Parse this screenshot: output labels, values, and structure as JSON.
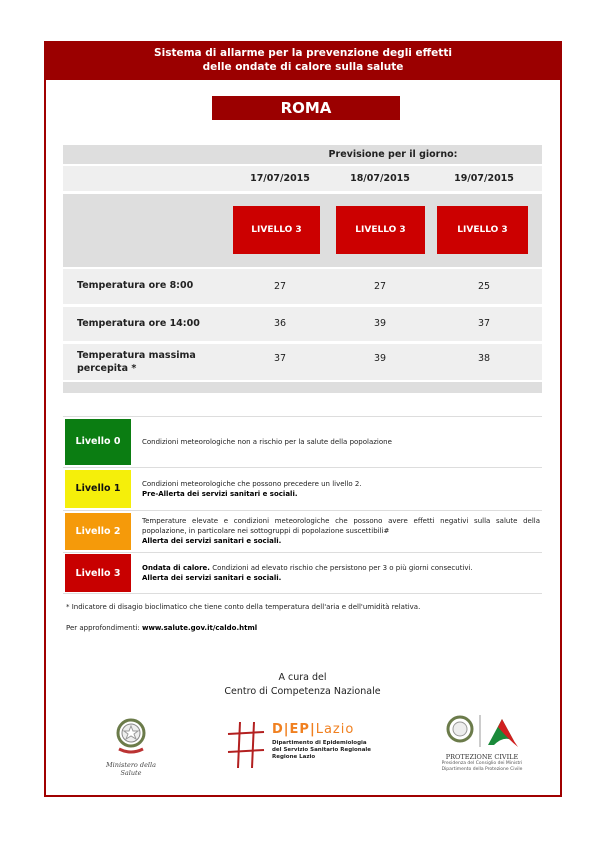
{
  "header": {
    "line1": "Sistema di allarme per la prevenzione degli effetti",
    "line2": "delle ondate di calore sulla salute"
  },
  "city": "ROMA",
  "forecast": {
    "label": "Previsione per il giorno:",
    "days": [
      {
        "date": "17/07/2015",
        "level": "LIVELLO 3"
      },
      {
        "date": "18/07/2015",
        "level": "LIVELLO 3"
      },
      {
        "date": "19/07/2015",
        "level": "LIVELLO 3"
      }
    ],
    "rows": [
      {
        "label": "Temperatura ore 8:00",
        "values": [
          "27",
          "27",
          "25"
        ]
      },
      {
        "label": "Temperatura ore 14:00",
        "values": [
          "36",
          "39",
          "37"
        ]
      },
      {
        "label": "Temperatura massima percepita *",
        "values": [
          "37",
          "39",
          "38"
        ]
      }
    ],
    "level_color": "#cc0000"
  },
  "legend": [
    {
      "label": "Livello 0",
      "color": "#0b7d12",
      "text_color": "#ffffff",
      "desc": "Condizioni meteorologiche non a rischio per la salute della popolazione",
      "bold_prefix": "",
      "bold": ""
    },
    {
      "label": "Livello 1",
      "color": "#f5ef0a",
      "text_color": "#111111",
      "desc": "Condizioni meteorologiche che possono precedere un livello 2.",
      "bold_prefix": "",
      "bold": "Pre-Allerta dei servizi sanitari e sociali."
    },
    {
      "label": "Livello 2",
      "color": "#f59a0a",
      "text_color": "#ffffff",
      "desc": "Temperature elevate e condizioni meteorologiche che possono avere effetti negativi sulla salute della popolazione, in particolare nei sottogruppi di popolazione suscettibili#",
      "bold_prefix": "",
      "bold": "Allerta dei servizi sanitari e sociali."
    },
    {
      "label": "Livello 3",
      "color": "#c80000",
      "text_color": "#ffffff",
      "desc": "Condizioni ad elevato rischio che persistono per 3 o più giorni consecutivi.",
      "bold_prefix": "Ondata di calore.",
      "bold": "Allerta dei servizi sanitari e sociali."
    }
  ],
  "footnote": "* Indicatore di disagio bioclimatico che tiene conto della temperatura dell'aria e dell'umidità relativa.",
  "more": {
    "label": "Per approfondimenti:",
    "link": "www.salute.gov.it/caldo.html"
  },
  "credits": {
    "line1": "A cura del",
    "line2": "Centro di Competenza Nazionale"
  },
  "logos": {
    "ministero": "Ministero della Salute",
    "dep": {
      "name_a": "D|EP|",
      "name_b": "Lazio",
      "l1": "Dipartimento di Epidemiologia",
      "l2": "del Servizio Sanitario Regionale",
      "l3": "Regione Lazio"
    },
    "pc": {
      "name": "PROTEZIONE CIVILE",
      "l1": "Presidenza del Consiglio dei Ministri",
      "l2": "Dipartimento della Protezione Civile"
    }
  }
}
